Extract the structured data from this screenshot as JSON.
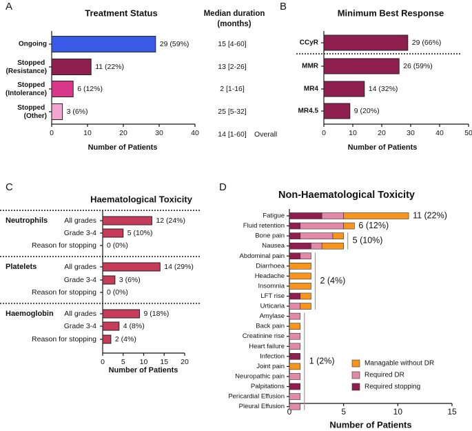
{
  "chart_data": [
    {
      "type": "bar",
      "orientation": "horizontal",
      "panel_label": "A",
      "title": "Treatment Status",
      "categories": [
        "Ongoing",
        "Stopped (Resistance)",
        "Stopped (Intolerance)",
        "Stopped (Other)"
      ],
      "values": [
        29,
        11,
        6,
        3
      ],
      "value_labels": [
        "29 (59%)",
        "11 (22%)",
        "6 (12%)",
        "3 (6%)"
      ],
      "colors": [
        "#3a5be8",
        "#8e1f4f",
        "#d8388a",
        "#f2a6cf"
      ],
      "xlabel": "Number of Patients",
      "xlim": [
        0,
        40
      ],
      "xticks": [
        0,
        10,
        20,
        30,
        40
      ],
      "table_header": [
        "Median duration",
        "(months)"
      ],
      "table_values": [
        "15 [4-60]",
        "13 [2-26]",
        "2 [1-16]",
        "25 [5-32]"
      ],
      "table_overall": "14 [1-60]",
      "table_overall_label": "Overall"
    },
    {
      "type": "bar",
      "orientation": "horizontal",
      "panel_label": "B",
      "title": "Minimum Best Response",
      "categories": [
        "CCyR",
        "MMR",
        "MR4",
        "MR4.5"
      ],
      "values": [
        29,
        26,
        14,
        9
      ],
      "value_labels": [
        "29 (66%)",
        "26 (59%)",
        "14 (32%)",
        "9 (20%)"
      ],
      "color": "#8e1f4f",
      "xlabel": "Number of Patients",
      "xlim": [
        0,
        50
      ],
      "xticks": [
        0,
        10,
        20,
        30,
        40,
        50
      ]
    },
    {
      "type": "bar",
      "orientation": "horizontal",
      "panel_label": "C",
      "title": "Haematological Toxicity",
      "groups": [
        {
          "name": "Neutrophils",
          "categories": [
            "All grades",
            "Grade 3-4",
            "Reason for stopping"
          ],
          "values": [
            12,
            5,
            0
          ],
          "value_labels": [
            "12 (24%)",
            "5 (10%)",
            "0 (0%)"
          ]
        },
        {
          "name": "Platelets",
          "categories": [
            "All grades",
            "Grade 3-4",
            "Reason for stopping"
          ],
          "values": [
            14,
            3,
            0
          ],
          "value_labels": [
            "14 (29%)",
            "3 (6%)",
            "0 (0%)"
          ]
        },
        {
          "name": "Haemoglobin",
          "categories": [
            "All grades",
            "Grade 3-4",
            "Reason for stopping"
          ],
          "values": [
            9,
            4,
            2
          ],
          "value_labels": [
            "9 (18%)",
            "4 (8%)",
            "2 (4%)"
          ]
        }
      ],
      "color": "#c63b5a",
      "xlabel": "Number of Patients",
      "xlim": [
        0,
        20
      ],
      "xticks": [
        0,
        5,
        10,
        15,
        20
      ]
    },
    {
      "type": "stacked_bar",
      "orientation": "horizontal",
      "panel_label": "D",
      "title": "Non-Haematological Toxicity",
      "categories": [
        "Fatigue",
        "Fluid retention",
        "Bone pain",
        "Nausea",
        "Abdominal pain",
        "Diarrhoea",
        "Headache",
        "Insomnia",
        "LFT rise",
        "Urticaria",
        "Amylase",
        "Back pain",
        "Creatinine rise",
        "Heart failure",
        "Infection",
        "Joint pain",
        "Neuropathic pain",
        "Palpitations",
        "Pericardial Effusion",
        "Pleural Effusion"
      ],
      "series": [
        {
          "name": "Managable without DR",
          "color": "#f7941d",
          "values": [
            6,
            1,
            1,
            2,
            0,
            2,
            2,
            2,
            1,
            1,
            0,
            1,
            0,
            0,
            0,
            1,
            0,
            0,
            0,
            0
          ]
        },
        {
          "name": "Required DR",
          "color": "#e08aa8",
          "values": [
            2,
            4,
            3,
            1,
            1,
            0,
            0,
            0,
            0,
            1,
            1,
            0,
            1,
            1,
            0,
            0,
            1,
            0,
            1,
            1
          ]
        },
        {
          "name": "Required stopping",
          "color": "#8e1f4f",
          "values": [
            3,
            1,
            1,
            2,
            1,
            0,
            0,
            0,
            1,
            0,
            0,
            0,
            0,
            0,
            1,
            0,
            0,
            1,
            0,
            0
          ]
        }
      ],
      "annotations": [
        "11 (22%)",
        "6 (12%)",
        "5 (10%)",
        "2 (4%)",
        "1 (2%)"
      ],
      "legend": "lower right",
      "xlabel": "Number of Patients",
      "xlim": [
        0,
        15
      ],
      "xticks": [
        0,
        5,
        10,
        15
      ]
    }
  ]
}
